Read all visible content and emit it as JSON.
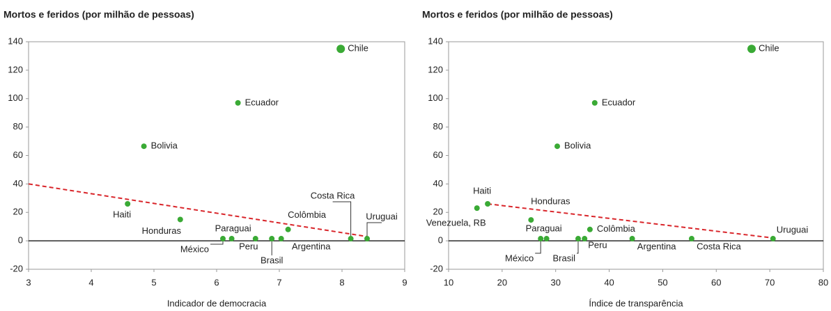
{
  "chart_data": [
    {
      "type": "scatter",
      "title": "Mortos e feridos (por milhão de pessoas)",
      "xlabel": "Indicador de democracia",
      "xlim": [
        3,
        9
      ],
      "ylim": [
        -20,
        140
      ],
      "xticks": [
        3,
        4,
        5,
        6,
        7,
        8,
        9
      ],
      "yticks": [
        -20,
        0,
        20,
        40,
        60,
        80,
        100,
        120,
        140
      ],
      "color": "#3aaa35",
      "labels": [
        "Chile",
        "Ecuador",
        "Bolivia",
        "Haiti",
        "Honduras",
        "Paraguai",
        "México",
        "Peru",
        "Brasil",
        "Argentina",
        "Colômbia",
        "Costa Rica",
        "Uruguai"
      ],
      "x": [
        7.98,
        6.34,
        4.84,
        4.58,
        5.42,
        6.24,
        6.1,
        6.62,
        6.88,
        7.03,
        7.14,
        8.14,
        8.4
      ],
      "y": [
        135,
        97,
        66.5,
        26,
        15,
        1.5,
        1.5,
        1.5,
        1.5,
        1.5,
        8,
        1.5,
        1.5
      ],
      "trend": {
        "color": "#d9262b",
        "x": [
          3,
          8.4
        ],
        "y": [
          40,
          3
        ]
      }
    },
    {
      "type": "scatter",
      "title": "Mortos e feridos (por milhão de pessoas)",
      "xlabel": "Índice de transparência",
      "xlim": [
        10,
        80
      ],
      "ylim": [
        -20,
        140
      ],
      "xticks": [
        10,
        20,
        30,
        40,
        50,
        60,
        70,
        80
      ],
      "yticks": [
        -20,
        0,
        20,
        40,
        60,
        80,
        100,
        120,
        140
      ],
      "color": "#3aaa35",
      "labels": [
        "Chile",
        "Ecuador",
        "Bolivia",
        "Haiti",
        "Venezuela, RB",
        "Honduras",
        "Paraguai",
        "México",
        "Peru",
        "Brasil",
        "Colômbia",
        "Argentina",
        "Costa Rica",
        "Uruguai"
      ],
      "x": [
        66.6,
        37.3,
        30.3,
        17.3,
        15.3,
        25.4,
        28.3,
        27.2,
        35.4,
        34.2,
        36.4,
        44.3,
        55.4,
        70.6
      ],
      "y": [
        135,
        97,
        66.5,
        26,
        23,
        14.7,
        1.5,
        1.5,
        1.5,
        1.5,
        8,
        1.5,
        1.5,
        1.5
      ],
      "trend": {
        "color": "#d9262b",
        "x": [
          17.3,
          70.6
        ],
        "y": [
          26,
          2
        ]
      }
    }
  ]
}
